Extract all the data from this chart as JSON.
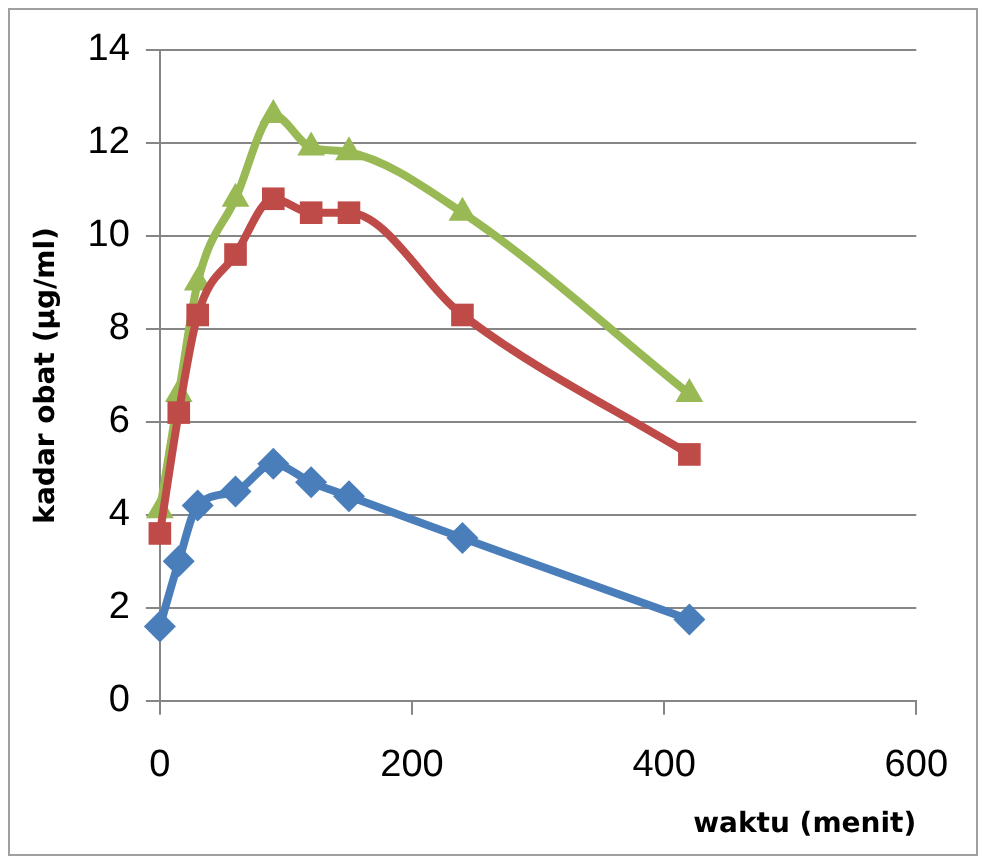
{
  "chart_data": {
    "type": "line",
    "xlabel": "waktu (menit)",
    "ylabel": "kadar obat (µg/ml)",
    "x": [
      0,
      15,
      30,
      60,
      90,
      120,
      150,
      240,
      420
    ],
    "xlim": [
      0,
      600
    ],
    "xticks": [
      0,
      200,
      400,
      600
    ],
    "ylim": [
      0,
      14
    ],
    "yticks": [
      0,
      2,
      4,
      6,
      8,
      10,
      12,
      14
    ],
    "grid": "y",
    "legend": false,
    "line_style": "solid",
    "series": [
      {
        "color": "#4a7ebb",
        "marker": "diamond",
        "values": [
          1.6,
          3.0,
          4.2,
          4.5,
          5.1,
          4.7,
          4.4,
          3.5,
          1.75
        ]
      },
      {
        "color": "#be4b48",
        "marker": "square",
        "values": [
          3.6,
          6.2,
          8.3,
          9.6,
          10.8,
          10.5,
          10.5,
          8.3,
          5.3
        ]
      },
      {
        "color": "#98b954",
        "marker": "triangle",
        "values": [
          4.1,
          6.6,
          9.0,
          10.8,
          12.6,
          11.9,
          11.8,
          10.5,
          6.6
        ]
      }
    ]
  }
}
